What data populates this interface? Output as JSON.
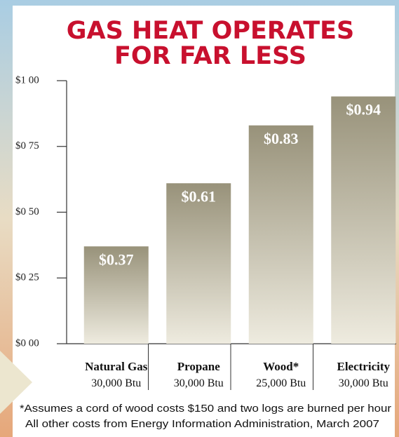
{
  "chart_data": {
    "type": "bar",
    "title": [
      "GAS HEAT OPERATES",
      "FOR FAR LESS"
    ],
    "categories": [
      "Natural Gas",
      "Propane",
      "Wood*",
      "Electricity"
    ],
    "subcategories": [
      "30,000 Btu",
      "30,000 Btu",
      "25,000 Btu",
      "30,000 Btu"
    ],
    "values": [
      0.37,
      0.61,
      0.83,
      0.94
    ],
    "value_labels": [
      "$0.37",
      "$0.61",
      "$0.83",
      "$0.94"
    ],
    "ylim": [
      0,
      1
    ],
    "yticks": [
      {
        "value": 0,
        "label": "$0 00"
      },
      {
        "value": 0.25,
        "label": "$0 25"
      },
      {
        "value": 0.5,
        "label": "$0 50"
      },
      {
        "value": 0.75,
        "label": "$0 75"
      },
      {
        "value": 1,
        "label": "$1 00"
      }
    ],
    "annotations": [
      "*Assumes a cord of wood costs $150 and two logs are burned per hour",
      "All other costs from Energy Information Administration, March 2007"
    ]
  }
}
